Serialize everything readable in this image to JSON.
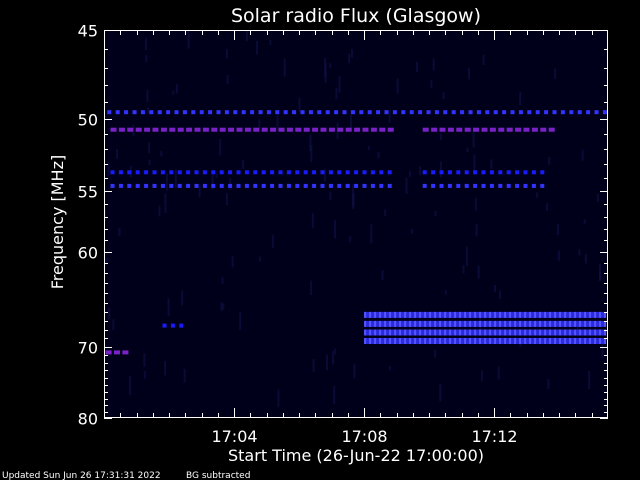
{
  "chart_data": {
    "type": "heatmap",
    "title": "Solar radio Flux (Glasgow)",
    "xlabel": "Start Time (26-Jun-22 17:00:00)",
    "ylabel": "Frequency [MHz]",
    "x_range_minutes": [
      0,
      15.5
    ],
    "y_range_mhz": [
      45,
      80
    ],
    "y_scale": "reciprocal",
    "x_ticks": [
      {
        "minute": 4,
        "label": "17:04"
      },
      {
        "minute": 8,
        "label": "17:08"
      },
      {
        "minute": 12,
        "label": "17:12"
      }
    ],
    "y_ticks": [
      {
        "value": 45,
        "label": "45"
      },
      {
        "value": 50,
        "label": "50"
      },
      {
        "value": 55,
        "label": "55"
      },
      {
        "value": 60,
        "label": "60"
      },
      {
        "value": 70,
        "label": "70"
      },
      {
        "value": 80,
        "label": "80"
      }
    ],
    "y_minor_ticks": [
      46,
      47,
      48,
      49,
      51,
      52,
      53,
      54,
      56,
      57,
      58,
      59,
      61,
      62,
      63,
      64,
      65,
      66,
      67,
      68,
      69,
      71,
      72,
      73,
      74,
      75,
      76,
      77,
      78,
      79
    ],
    "background_color": "#00001a",
    "colors": {
      "weak": "#1a1aff",
      "medium": "#3333ff",
      "strong": "#7a22c8"
    },
    "bands": [
      {
        "freq_mhz": 49.6,
        "start_min": 0.1,
        "end_min": 15.4,
        "intensity": "medium",
        "dashed": true
      },
      {
        "freq_mhz": 50.7,
        "start_min": 0.2,
        "end_min": 8.9,
        "intensity": "strong",
        "dashed": true
      },
      {
        "freq_mhz": 50.7,
        "start_min": 9.8,
        "end_min": 13.9,
        "intensity": "strong",
        "dashed": true
      },
      {
        "freq_mhz": 53.6,
        "start_min": 0.2,
        "end_min": 8.9,
        "intensity": "weak",
        "dashed": true
      },
      {
        "freq_mhz": 53.6,
        "start_min": 9.8,
        "end_min": 13.5,
        "intensity": "weak",
        "dashed": true
      },
      {
        "freq_mhz": 54.6,
        "start_min": 0.2,
        "end_min": 8.9,
        "intensity": "medium",
        "dashed": true
      },
      {
        "freq_mhz": 54.6,
        "start_min": 9.8,
        "end_min": 13.5,
        "intensity": "medium",
        "dashed": true
      },
      {
        "freq_mhz": 66.3,
        "start_min": 8.0,
        "end_min": 15.4,
        "intensity": "medium",
        "dashed": false
      },
      {
        "freq_mhz": 67.3,
        "start_min": 8.0,
        "end_min": 15.4,
        "intensity": "medium",
        "dashed": false
      },
      {
        "freq_mhz": 68.3,
        "start_min": 8.0,
        "end_min": 15.4,
        "intensity": "medium",
        "dashed": false
      },
      {
        "freq_mhz": 69.3,
        "start_min": 8.0,
        "end_min": 15.4,
        "intensity": "medium",
        "dashed": false
      },
      {
        "freq_mhz": 67.5,
        "start_min": 1.8,
        "end_min": 2.4,
        "intensity": "weak",
        "dashed": true
      },
      {
        "freq_mhz": 70.7,
        "start_min": 0.05,
        "end_min": 0.6,
        "intensity": "strong",
        "dashed": true
      }
    ]
  },
  "footer": {
    "updated": "Updated Sun Jun 26 17:31:31 2022",
    "note": "BG subtracted"
  }
}
